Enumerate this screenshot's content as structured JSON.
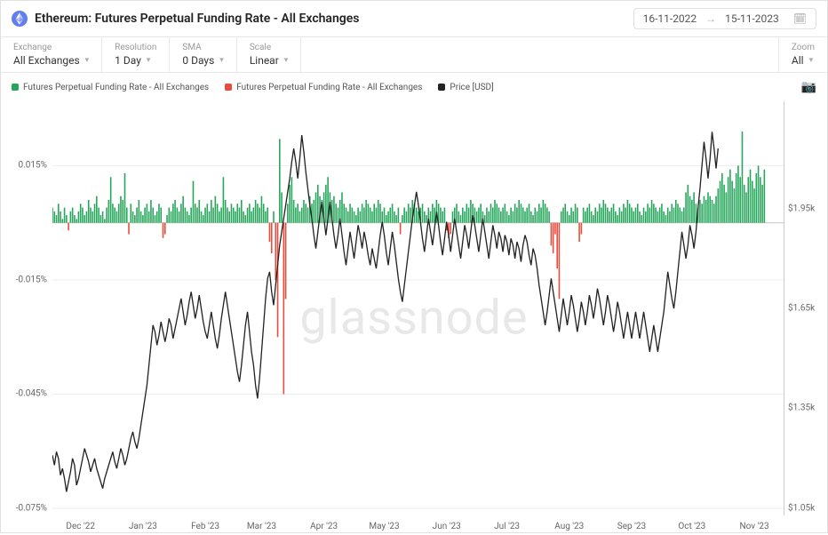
{
  "header": {
    "title": "Ethereum: Futures Perpetual Funding Rate - All Exchanges",
    "date_from": "16-11-2022",
    "date_to": "15-11-2023"
  },
  "controls": {
    "exchange": {
      "label": "Exchange",
      "value": "All Exchanges"
    },
    "resolution": {
      "label": "Resolution",
      "value": "1 Day"
    },
    "sma": {
      "label": "SMA",
      "value": "0 Days"
    },
    "scale": {
      "label": "Scale",
      "value": "Linear"
    },
    "zoom": {
      "label": "Zoom",
      "value": "All"
    }
  },
  "legend": {
    "pos": {
      "label": "Futures Perpetual Funding Rate - All Exchanges",
      "color": "#26a65b"
    },
    "neg": {
      "label": "Futures Perpetual Funding Rate - All Exchanges",
      "color": "#e74c3c"
    },
    "price": {
      "label": "Price [USD]",
      "color": "#222222"
    }
  },
  "watermark": "glassnode",
  "chart": {
    "type": "bar+line",
    "background_color": "#ffffff",
    "grid_color": "#eeeeee",
    "left_axis": {
      "min": -0.075,
      "max": 0.03,
      "ticks": [
        -0.075,
        -0.045,
        -0.015,
        0.015
      ],
      "tick_labels": [
        "-0.075%",
        "-0.045%",
        "-0.015%",
        "0.015%"
      ]
    },
    "right_axis": {
      "min": 1050,
      "max": 2250,
      "ticks": [
        1050,
        1350,
        1650,
        1950
      ],
      "tick_labels": [
        "$1.05k",
        "$1.35k",
        "$1.65k",
        "$1.95k"
      ]
    },
    "x_axis": {
      "count": 365,
      "tick_idx": [
        14,
        45,
        76,
        104,
        135,
        165,
        196,
        226,
        257,
        288,
        318,
        349
      ],
      "tick_labels": [
        "Dec '22",
        "Jan '23",
        "Feb '23",
        "Mar '23",
        "Apr '23",
        "May '23",
        "Jun '23",
        "Jul '23",
        "Aug '23",
        "Sep '23",
        "Oct '23",
        "Nov '23"
      ]
    },
    "bar_pos_color": "#26a65b",
    "bar_neg_color": "#e74c3c",
    "line_color": "#222222",
    "line_width": 1.3,
    "funding": [
      0.004,
      0.003,
      0.002,
      0.005,
      0.003,
      0.001,
      0.004,
      0.002,
      -0.002,
      0.003,
      0.004,
      0.002,
      0.001,
      0.003,
      0.005,
      0.004,
      0.002,
      0.003,
      0.006,
      0.004,
      0.003,
      0.005,
      0.007,
      0.004,
      0.002,
      0.003,
      0.001,
      0.004,
      0.006,
      0.012,
      0.005,
      0.004,
      0.003,
      0.005,
      0.007,
      0.006,
      0.013,
      0.004,
      -0.003,
      0.005,
      0.003,
      0.002,
      0.004,
      0.006,
      0.003,
      0.002,
      0.004,
      0.005,
      0.003,
      0.006,
      0.004,
      0.002,
      0.003,
      0.005,
      0.004,
      -0.004,
      -0.003,
      0.002,
      0.004,
      0.003,
      0.005,
      0.006,
      0.004,
      0.003,
      0.005,
      0.007,
      0.004,
      0.003,
      0.002,
      0.004,
      0.011,
      0.005,
      0.004,
      0.006,
      0.003,
      0.002,
      0.004,
      0.005,
      0.003,
      0.006,
      0.004,
      0.007,
      0.005,
      0.003,
      0.004,
      0.012,
      0.006,
      0.004,
      0.003,
      0.005,
      0.004,
      0.003,
      0.005,
      0.004,
      0.006,
      0.003,
      0.002,
      0.004,
      0.005,
      0.003,
      0.004,
      0.006,
      0.005,
      0.004,
      0.007,
      0.005,
      0.003,
      0.004,
      -0.005,
      -0.008,
      0.003,
      -0.015,
      -0.03,
      0.022,
      0.008,
      -0.045,
      -0.02,
      0.005,
      0.01,
      0.012,
      0.006,
      0.004,
      0.005,
      0.003,
      0.004,
      0.006,
      0.005,
      0.004,
      0.007,
      0.005,
      0.006,
      0.008,
      0.01,
      0.007,
      0.006,
      0.008,
      0.01,
      0.012,
      0.008,
      0.006,
      0.007,
      0.005,
      0.004,
      0.006,
      0.008,
      0.005,
      0.004,
      0.003,
      0.005,
      0.004,
      0.003,
      0.002,
      0.004,
      0.003,
      0.005,
      0.004,
      0.006,
      0.005,
      0.004,
      0.003,
      0.005,
      0.004,
      0.006,
      0.005,
      0.003,
      0.004,
      0.002,
      0.003,
      0.004,
      0.005,
      0.003,
      0.002,
      0.004,
      -0.003,
      0.002,
      0.004,
      0.003,
      0.005,
      0.004,
      0.006,
      0.005,
      0.004,
      0.003,
      0.004,
      0.005,
      0.003,
      0.002,
      0.004,
      0.003,
      0.005,
      0.004,
      0.006,
      0.005,
      0.004,
      0.003,
      0.004,
      -0.002,
      -0.004,
      -0.003,
      0.003,
      0.004,
      0.005,
      0.003,
      0.002,
      0.004,
      0.003,
      0.005,
      0.004,
      0.006,
      0.005,
      0.004,
      0.003,
      0.004,
      0.005,
      0.003,
      0.002,
      0.004,
      0.003,
      0.005,
      0.004,
      0.006,
      0.005,
      0.004,
      0.003,
      0.004,
      0.005,
      0.003,
      0.002,
      0.004,
      0.003,
      0.005,
      0.004,
      0.006,
      0.005,
      0.004,
      0.003,
      0.004,
      0.005,
      0.003,
      0.002,
      0.004,
      0.003,
      0.005,
      0.004,
      0.006,
      0.005,
      0.004,
      0.003,
      -0.006,
      -0.008,
      -0.003,
      -0.012,
      -0.02,
      0.003,
      0.004,
      0.005,
      0.003,
      0.002,
      0.004,
      0.003,
      0.005,
      0.004,
      -0.005,
      -0.003,
      0.004,
      0.003,
      0.004,
      0.005,
      0.003,
      0.002,
      0.004,
      0.003,
      0.005,
      0.004,
      0.006,
      0.005,
      0.004,
      0.003,
      0.004,
      0.005,
      0.003,
      0.002,
      0.004,
      0.003,
      0.005,
      0.004,
      0.006,
      0.005,
      0.004,
      0.003,
      0.004,
      0.005,
      0.003,
      0.002,
      0.004,
      0.003,
      0.005,
      0.004,
      0.006,
      0.005,
      0.004,
      0.003,
      0.004,
      0.005,
      0.003,
      0.002,
      0.004,
      0.003,
      0.005,
      0.004,
      0.006,
      0.005,
      0.004,
      0.003,
      0.004,
      0.008,
      0.01,
      0.007,
      0.006,
      0.008,
      0.005,
      0.004,
      0.006,
      0.005,
      0.007,
      0.006,
      0.008,
      0.007,
      0.006,
      0.005,
      0.007,
      0.009,
      0.011,
      0.013,
      0.01,
      0.008,
      0.012,
      0.014,
      0.011,
      0.009,
      0.013,
      0.015,
      0.012,
      0.024,
      0.01,
      0.008,
      0.012,
      0.014,
      0.011,
      0.009,
      0.013,
      0.015,
      0.012,
      0.01,
      0.014
    ],
    "price": [
      1210,
      1180,
      1220,
      1200,
      1150,
      1170,
      1140,
      1100,
      1130,
      1160,
      1200,
      1180,
      1120,
      1140,
      1170,
      1200,
      1230,
      1210,
      1190,
      1160,
      1180,
      1200,
      1170,
      1150,
      1130,
      1110,
      1140,
      1160,
      1180,
      1200,
      1220,
      1190,
      1170,
      1200,
      1230,
      1210,
      1180,
      1200,
      1230,
      1260,
      1280,
      1250,
      1230,
      1260,
      1300,
      1340,
      1380,
      1420,
      1480,
      1540,
      1600,
      1580,
      1540,
      1570,
      1610,
      1580,
      1550,
      1580,
      1620,
      1600,
      1560,
      1590,
      1620,
      1650,
      1680,
      1640,
      1600,
      1630,
      1670,
      1700,
      1660,
      1620,
      1650,
      1690,
      1650,
      1610,
      1580,
      1560,
      1600,
      1640,
      1600,
      1560,
      1530,
      1570,
      1620,
      1660,
      1700,
      1660,
      1620,
      1580,
      1540,
      1500,
      1460,
      1430,
      1480,
      1540,
      1600,
      1640,
      1580,
      1520,
      1480,
      1420,
      1380,
      1440,
      1520,
      1600,
      1680,
      1740,
      1760,
      1700,
      1660,
      1720,
      1780,
      1840,
      1880,
      1920,
      1960,
      2000,
      2040,
      2090,
      2130,
      2090,
      2040,
      2100,
      2170,
      2120,
      2060,
      2010,
      1960,
      1920,
      1870,
      1830,
      1880,
      1930,
      1970,
      1920,
      1870,
      1920,
      1970,
      1920,
      1870,
      1830,
      1870,
      1920,
      1870,
      1820,
      1780,
      1830,
      1880,
      1840,
      1800,
      1850,
      1900,
      1870,
      1830,
      1880,
      1850,
      1810,
      1780,
      1830,
      1800,
      1770,
      1820,
      1870,
      1910,
      1870,
      1820,
      1780,
      1830,
      1880,
      1840,
      1790,
      1740,
      1700,
      1670,
      1720,
      1770,
      1820,
      1870,
      1920,
      1960,
      2000,
      1960,
      1910,
      1860,
      1820,
      1870,
      1920,
      1880,
      1840,
      1890,
      1940,
      1900,
      1850,
      1810,
      1860,
      1910,
      1870,
      1820,
      1870,
      1920,
      1880,
      1840,
      1800,
      1850,
      1900,
      1870,
      1830,
      1880,
      1930,
      1900,
      1860,
      1820,
      1870,
      1920,
      1880,
      1840,
      1800,
      1850,
      1900,
      1870,
      1830,
      1880,
      1860,
      1820,
      1870,
      1850,
      1810,
      1860,
      1840,
      1800,
      1850,
      1830,
      1790,
      1840,
      1870,
      1850,
      1810,
      1780,
      1830,
      1810,
      1770,
      1720,
      1680,
      1640,
      1600,
      1640,
      1690,
      1740,
      1700,
      1660,
      1620,
      1580,
      1630,
      1680,
      1640,
      1600,
      1640,
      1690,
      1660,
      1620,
      1580,
      1620,
      1670,
      1640,
      1600,
      1640,
      1690,
      1660,
      1620,
      1660,
      1710,
      1680,
      1640,
      1600,
      1640,
      1690,
      1660,
      1620,
      1580,
      1620,
      1670,
      1640,
      1600,
      1560,
      1600,
      1640,
      1600,
      1560,
      1600,
      1640,
      1600,
      1560,
      1600,
      1640,
      1600,
      1560,
      1520,
      1560,
      1600,
      1560,
      1520,
      1560,
      1600,
      1640,
      1700,
      1760,
      1720,
      1680,
      1650,
      1700,
      1760,
      1820,
      1880,
      1840,
      1800,
      1840,
      1900,
      1870,
      1830,
      1880,
      1950,
      2010,
      2080,
      2150,
      2100,
      2040,
      2100,
      2180,
      2130,
      2070,
      2130
    ]
  }
}
